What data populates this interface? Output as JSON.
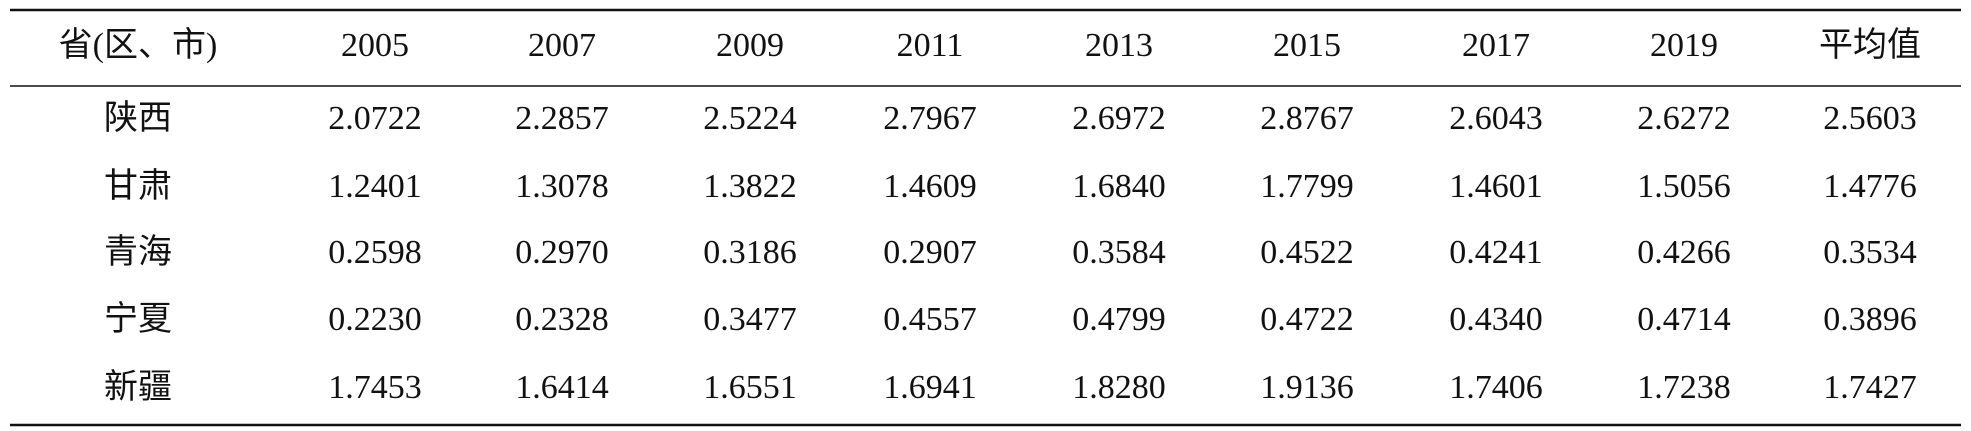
{
  "table": {
    "header": [
      "省(区、市)",
      "2005",
      "2007",
      "2009",
      "2011",
      "2013",
      "2015",
      "2017",
      "2019",
      "平均值"
    ],
    "rows": [
      [
        "陕西",
        "2.0722",
        "2.2857",
        "2.5224",
        "2.7967",
        "2.6972",
        "2.8767",
        "2.6043",
        "2.6272",
        "2.5603"
      ],
      [
        "甘肃",
        "1.2401",
        "1.3078",
        "1.3822",
        "1.4609",
        "1.6840",
        "1.7799",
        "1.4601",
        "1.5056",
        "1.4776"
      ],
      [
        "青海",
        "0.2598",
        "0.2970",
        "0.3186",
        "0.2907",
        "0.3584",
        "0.4522",
        "0.4241",
        "0.4266",
        "0.3534"
      ],
      [
        "宁夏",
        "0.2230",
        "0.2328",
        "0.3477",
        "0.4557",
        "0.4799",
        "0.4722",
        "0.4340",
        "0.4714",
        "0.3896"
      ],
      [
        "新疆",
        "1.7453",
        "1.6414",
        "1.6551",
        "1.6941",
        "1.8280",
        "1.9136",
        "1.7406",
        "1.7238",
        "1.7427"
      ]
    ]
  }
}
